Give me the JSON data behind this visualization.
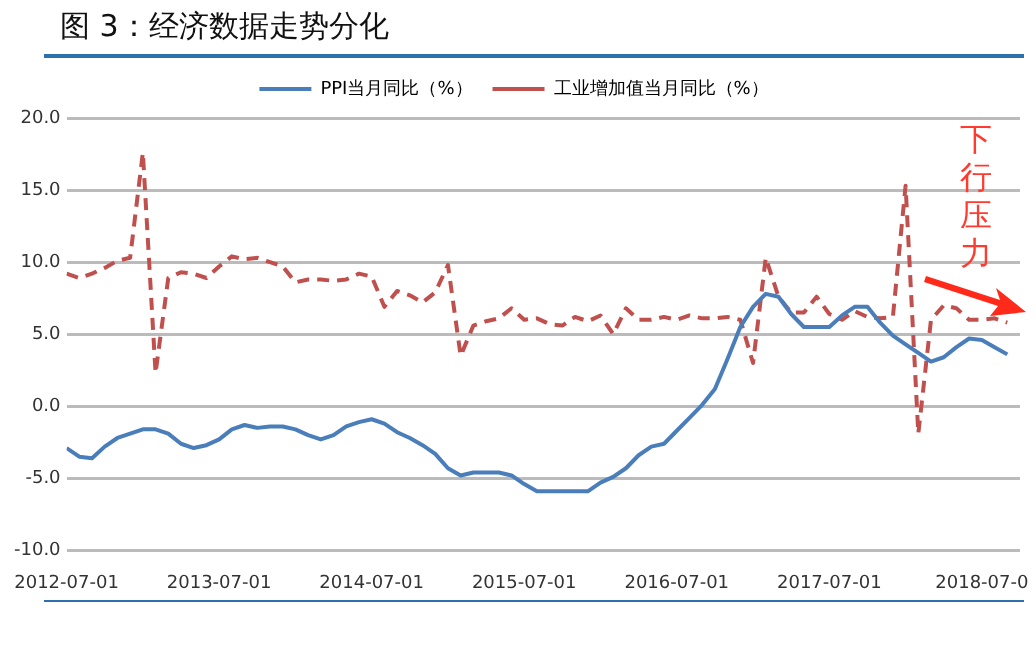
{
  "chart_data": {
    "type": "line",
    "title": "图 3：经济数据走势分化",
    "x": [
      "2012-07",
      "2012-08",
      "2012-09",
      "2012-10",
      "2012-11",
      "2012-12",
      "2013-01",
      "2013-02",
      "2013-03",
      "2013-04",
      "2013-05",
      "2013-06",
      "2013-07",
      "2013-08",
      "2013-09",
      "2013-10",
      "2013-11",
      "2013-12",
      "2014-01",
      "2014-02",
      "2014-03",
      "2014-04",
      "2014-05",
      "2014-06",
      "2014-07",
      "2014-08",
      "2014-09",
      "2014-10",
      "2014-11",
      "2014-12",
      "2015-01",
      "2015-02",
      "2015-03",
      "2015-04",
      "2015-05",
      "2015-06",
      "2015-07",
      "2015-08",
      "2015-09",
      "2015-10",
      "2015-11",
      "2015-12",
      "2016-01",
      "2016-02",
      "2016-03",
      "2016-04",
      "2016-05",
      "2016-06",
      "2016-07",
      "2016-08",
      "2016-09",
      "2016-10",
      "2016-11",
      "2016-12",
      "2017-01",
      "2017-02",
      "2017-03",
      "2017-04",
      "2017-05",
      "2017-06",
      "2017-07",
      "2017-08",
      "2017-09",
      "2017-10",
      "2017-11",
      "2017-12",
      "2018-01",
      "2018-02",
      "2018-03",
      "2018-04",
      "2018-05",
      "2018-06",
      "2018-07",
      "2018-08",
      "2018-09"
    ],
    "series": [
      {
        "name": "PPI当月同比（%）",
        "color": "#4a7ebb",
        "line_style": "solid",
        "values": [
          -2.9,
          -3.5,
          -3.6,
          -2.8,
          -2.2,
          -1.9,
          -1.6,
          -1.6,
          -1.9,
          -2.6,
          -2.9,
          -2.7,
          -2.3,
          -1.6,
          -1.3,
          -1.5,
          -1.4,
          -1.4,
          -1.6,
          -2.0,
          -2.3,
          -2.0,
          -1.4,
          -1.1,
          -0.9,
          -1.2,
          -1.8,
          -2.2,
          -2.7,
          -3.3,
          -4.3,
          -4.8,
          -4.6,
          -4.6,
          -4.6,
          -4.8,
          -5.4,
          -5.9,
          -5.9,
          -5.9,
          -5.9,
          -5.9,
          -5.3,
          -4.9,
          -4.3,
          -3.4,
          -2.8,
          -2.6,
          -1.7,
          -0.8,
          0.1,
          1.2,
          3.3,
          5.5,
          6.9,
          7.8,
          7.6,
          6.4,
          5.5,
          5.5,
          5.5,
          6.3,
          6.9,
          6.9,
          5.8,
          4.9,
          4.3,
          3.7,
          3.1,
          3.4,
          4.1,
          4.7,
          4.6,
          4.1,
          3.6
        ]
      },
      {
        "name": "工业增加值当月同比（%）",
        "color": "#c0504d",
        "line_style": "dashed",
        "values": [
          9.2,
          8.9,
          9.2,
          9.6,
          10.1,
          10.3,
          17.6,
          2.3,
          8.9,
          9.3,
          9.2,
          8.9,
          9.7,
          10.4,
          10.2,
          10.3,
          10.0,
          9.7,
          8.6,
          8.8,
          8.8,
          8.7,
          8.8,
          9.2,
          9.0,
          6.9,
          8.0,
          7.7,
          7.2,
          7.9,
          9.8,
          3.5,
          5.6,
          5.9,
          6.1,
          6.8,
          6.0,
          6.1,
          5.7,
          5.6,
          6.2,
          5.9,
          6.3,
          5.0,
          6.8,
          6.0,
          6.0,
          6.2,
          6.0,
          6.3,
          6.1,
          6.1,
          6.2,
          6.0,
          3.0,
          10.3,
          7.6,
          6.5,
          6.5,
          7.6,
          6.4,
          6.0,
          6.6,
          6.2,
          6.1,
          6.2,
          15.3,
          -1.9,
          6.0,
          7.0,
          6.8,
          6.0,
          6.0,
          6.1,
          5.8
        ]
      }
    ],
    "xlim": [
      "2012-07",
      "2018-10"
    ],
    "xticks": [
      {
        "value": "2012-07",
        "label": "2012-07-01"
      },
      {
        "value": "2013-07",
        "label": "2013-07-01"
      },
      {
        "value": "2014-07",
        "label": "2014-07-01"
      },
      {
        "value": "2015-07",
        "label": "2015-07-01"
      },
      {
        "value": "2016-07",
        "label": "2016-07-01"
      },
      {
        "value": "2017-07",
        "label": "2017-07-01"
      },
      {
        "value": "2018-07",
        "label": "2018-07-0"
      }
    ],
    "ylim": [
      -10,
      20
    ],
    "yticks": [
      {
        "value": -10,
        "label": "-10.0"
      },
      {
        "value": -5,
        "label": "-5.0"
      },
      {
        "value": 0,
        "label": "0.0"
      },
      {
        "value": 5,
        "label": "5.0"
      },
      {
        "value": 10,
        "label": "10.0"
      },
      {
        "value": 15,
        "label": "15.0"
      },
      {
        "value": 20,
        "label": "20.0"
      }
    ],
    "grid": "y",
    "legend": "top",
    "marker": "none",
    "annotations": [
      "下行压力"
    ]
  }
}
